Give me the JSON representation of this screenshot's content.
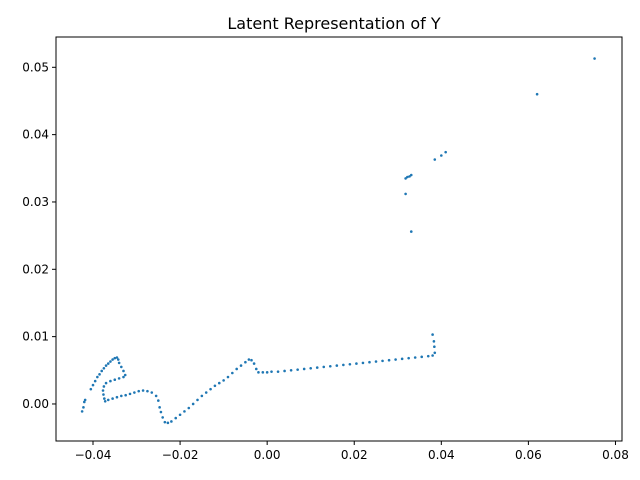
{
  "chart_data": {
    "type": "scatter",
    "title": "Latent Representation of Y",
    "xlabel": "",
    "ylabel": "",
    "xlim": [
      -0.0485,
      0.0815
    ],
    "ylim": [
      -0.0055,
      0.0545
    ],
    "grid": false,
    "marker_color": "#1f77b4",
    "x_ticks": [
      {
        "value": -0.04,
        "label": "−0.04"
      },
      {
        "value": -0.02,
        "label": "−0.02"
      },
      {
        "value": 0.0,
        "label": "0.00"
      },
      {
        "value": 0.02,
        "label": "0.02"
      },
      {
        "value": 0.04,
        "label": "0.04"
      },
      {
        "value": 0.06,
        "label": "0.06"
      },
      {
        "value": 0.08,
        "label": "0.08"
      }
    ],
    "y_ticks": [
      {
        "value": 0.0,
        "label": "0.00"
      },
      {
        "value": 0.01,
        "label": "0.01"
      },
      {
        "value": 0.02,
        "label": "0.02"
      },
      {
        "value": 0.03,
        "label": "0.03"
      },
      {
        "value": 0.04,
        "label": "0.04"
      },
      {
        "value": 0.05,
        "label": "0.05"
      }
    ],
    "series": [
      {
        "points": [
          [
            -0.0425,
            -0.0011
          ],
          [
            -0.0422,
            -0.0005
          ],
          [
            -0.042,
            0.0003
          ],
          [
            -0.0418,
            0.0006
          ],
          [
            -0.0405,
            0.0022
          ],
          [
            -0.04,
            0.0028
          ],
          [
            -0.0395,
            0.0034
          ],
          [
            -0.039,
            0.004
          ],
          [
            -0.0385,
            0.0044
          ],
          [
            -0.038,
            0.0049
          ],
          [
            -0.0375,
            0.0053
          ],
          [
            -0.037,
            0.0057
          ],
          [
            -0.0365,
            0.006
          ],
          [
            -0.036,
            0.0063
          ],
          [
            -0.0355,
            0.0066
          ],
          [
            -0.035,
            0.0068
          ],
          [
            -0.0345,
            0.0069
          ],
          [
            -0.0342,
            0.0066
          ],
          [
            -0.034,
            0.0061
          ],
          [
            -0.0335,
            0.0055
          ],
          [
            -0.033,
            0.0049
          ],
          [
            -0.0326,
            0.0043
          ],
          [
            -0.033,
            0.004
          ],
          [
            -0.034,
            0.0038
          ],
          [
            -0.035,
            0.0036
          ],
          [
            -0.036,
            0.0034
          ],
          [
            -0.037,
            0.0031
          ],
          [
            -0.0375,
            0.0026
          ],
          [
            -0.0377,
            0.002
          ],
          [
            -0.0376,
            0.0014
          ],
          [
            -0.0374,
            0.0008
          ],
          [
            -0.0372,
            0.0004
          ],
          [
            -0.0365,
            0.0006
          ],
          [
            -0.0355,
            0.0008
          ],
          [
            -0.0345,
            0.001
          ],
          [
            -0.0335,
            0.0012
          ],
          [
            -0.0325,
            0.0013
          ],
          [
            -0.0315,
            0.0015
          ],
          [
            -0.0305,
            0.0017
          ],
          [
            -0.0295,
            0.0019
          ],
          [
            -0.0285,
            0.002
          ],
          [
            -0.0275,
            0.0019
          ],
          [
            -0.0265,
            0.0017
          ],
          [
            -0.0255,
            0.0012
          ],
          [
            -0.025,
            0.0005
          ],
          [
            -0.0247,
            -0.0005
          ],
          [
            -0.0244,
            -0.0012
          ],
          [
            -0.024,
            -0.002
          ],
          [
            -0.0235,
            -0.0027
          ],
          [
            -0.0228,
            -0.0028
          ],
          [
            -0.022,
            -0.0026
          ],
          [
            -0.021,
            -0.0021
          ],
          [
            -0.02,
            -0.0016
          ],
          [
            -0.019,
            -0.0011
          ],
          [
            -0.018,
            -0.0006
          ],
          [
            -0.017,
            0.0
          ],
          [
            -0.016,
            0.0006
          ],
          [
            -0.015,
            0.0012
          ],
          [
            -0.014,
            0.0017
          ],
          [
            -0.013,
            0.0022
          ],
          [
            -0.012,
            0.0027
          ],
          [
            -0.011,
            0.0031
          ],
          [
            -0.01,
            0.0035
          ],
          [
            -0.009,
            0.004
          ],
          [
            -0.008,
            0.0046
          ],
          [
            -0.007,
            0.0052
          ],
          [
            -0.006,
            0.0057
          ],
          [
            -0.005,
            0.0062
          ],
          [
            -0.0042,
            0.0066
          ],
          [
            -0.0036,
            0.0065
          ],
          [
            -0.003,
            0.006
          ],
          [
            -0.0025,
            0.0052
          ],
          [
            -0.002,
            0.0047
          ],
          [
            -0.001,
            0.0047
          ],
          [
            0.0,
            0.0047
          ],
          [
            0.001,
            0.0048
          ],
          [
            0.0025,
            0.0048
          ],
          [
            0.004,
            0.0049
          ],
          [
            0.0055,
            0.005
          ],
          [
            0.007,
            0.0051
          ],
          [
            0.0085,
            0.0052
          ],
          [
            0.01,
            0.0053
          ],
          [
            0.0115,
            0.0054
          ],
          [
            0.013,
            0.0055
          ],
          [
            0.0145,
            0.0056
          ],
          [
            0.016,
            0.0057
          ],
          [
            0.0175,
            0.0058
          ],
          [
            0.019,
            0.0059
          ],
          [
            0.0205,
            0.006
          ],
          [
            0.022,
            0.0061
          ],
          [
            0.0235,
            0.0062
          ],
          [
            0.025,
            0.0063
          ],
          [
            0.0265,
            0.0064
          ],
          [
            0.028,
            0.0065
          ],
          [
            0.0295,
            0.0066
          ],
          [
            0.031,
            0.0067
          ],
          [
            0.0325,
            0.0068
          ],
          [
            0.034,
            0.0069
          ],
          [
            0.0355,
            0.007
          ],
          [
            0.037,
            0.0071
          ],
          [
            0.038,
            0.0072
          ],
          [
            0.0385,
            0.0076
          ],
          [
            0.0384,
            0.0085
          ],
          [
            0.0383,
            0.0093
          ],
          [
            0.038,
            0.0103
          ],
          [
            0.0318,
            0.0335
          ],
          [
            0.0322,
            0.0337
          ],
          [
            0.0327,
            0.0338
          ],
          [
            0.0331,
            0.034
          ],
          [
            0.0318,
            0.0312
          ],
          [
            0.0331,
            0.0256
          ],
          [
            0.0385,
            0.0363
          ],
          [
            0.04,
            0.0369
          ],
          [
            0.041,
            0.0374
          ],
          [
            0.062,
            0.046
          ],
          [
            0.0752,
            0.0513
          ]
        ]
      }
    ]
  }
}
